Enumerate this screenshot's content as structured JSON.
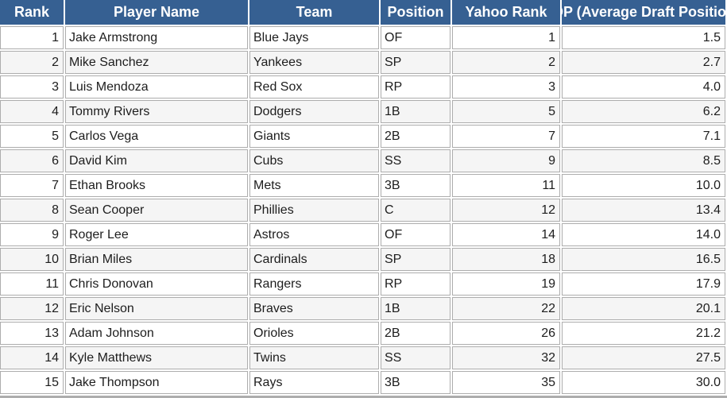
{
  "table": {
    "columns": [
      {
        "id": "rank",
        "label": "Rank",
        "align": "right"
      },
      {
        "id": "player-name",
        "label": "Player Name",
        "align": "left"
      },
      {
        "id": "team",
        "label": "Team",
        "align": "left"
      },
      {
        "id": "position",
        "label": "Position",
        "align": "left"
      },
      {
        "id": "yahoo-rank",
        "label": "Yahoo Rank",
        "align": "right"
      },
      {
        "id": "adp",
        "label": "ADP (Average Draft Position)",
        "align": "right"
      }
    ],
    "rows": [
      [
        "1",
        "Jake Armstrong",
        "Blue Jays",
        "OF",
        "1",
        "1.5"
      ],
      [
        "2",
        "Mike Sanchez",
        "Yankees",
        "SP",
        "2",
        "2.7"
      ],
      [
        "3",
        "Luis Mendoza",
        "Red Sox",
        "RP",
        "3",
        "4.0"
      ],
      [
        "4",
        "Tommy Rivers",
        "Dodgers",
        "1B",
        "5",
        "6.2"
      ],
      [
        "5",
        "Carlos Vega",
        "Giants",
        "2B",
        "7",
        "7.1"
      ],
      [
        "6",
        "David Kim",
        "Cubs",
        "SS",
        "9",
        "8.5"
      ],
      [
        "7",
        "Ethan Brooks",
        "Mets",
        "3B",
        "11",
        "10.0"
      ],
      [
        "8",
        "Sean Cooper",
        "Phillies",
        "C",
        "12",
        "13.4"
      ],
      [
        "9",
        "Roger Lee",
        "Astros",
        "OF",
        "14",
        "14.0"
      ],
      [
        "10",
        "Brian Miles",
        "Cardinals",
        "SP",
        "18",
        "16.5"
      ],
      [
        "11",
        "Chris Donovan",
        "Rangers",
        "RP",
        "19",
        "17.9"
      ],
      [
        "12",
        "Eric Nelson",
        "Braves",
        "1B",
        "22",
        "20.1"
      ],
      [
        "13",
        "Adam Johnson",
        "Orioles",
        "2B",
        "26",
        "21.2"
      ],
      [
        "14",
        "Kyle Matthews",
        "Twins",
        "SS",
        "32",
        "27.5"
      ],
      [
        "15",
        "Jake Thompson",
        "Rays",
        "3B",
        "35",
        "30.0"
      ]
    ]
  },
  "colors": {
    "header_bg": "#366092",
    "header_text": "#ffffff",
    "grid_border": "#adadad",
    "row_odd_bg": "#ffffff",
    "row_even_bg": "#f5f5f5",
    "cell_text": "#1d1d1d"
  }
}
